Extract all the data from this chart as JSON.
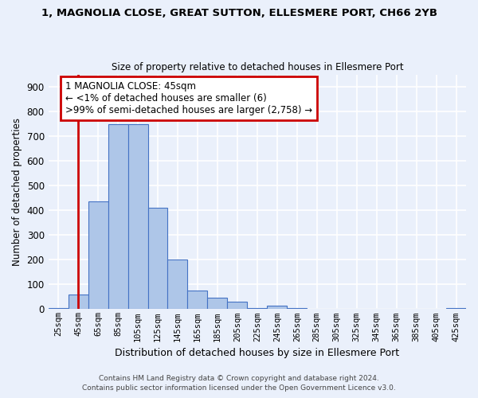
{
  "title": "1, MAGNOLIA CLOSE, GREAT SUTTON, ELLESMERE PORT, CH66 2YB",
  "subtitle": "Size of property relative to detached houses in Ellesmere Port",
  "xlabel": "Distribution of detached houses by size in Ellesmere Port",
  "ylabel": "Number of detached properties",
  "bin_labels": [
    "25sqm",
    "45sqm",
    "65sqm",
    "85sqm",
    "105sqm",
    "125sqm",
    "145sqm",
    "165sqm",
    "185sqm",
    "205sqm",
    "225sqm",
    "245sqm",
    "265sqm",
    "285sqm",
    "305sqm",
    "325sqm",
    "345sqm",
    "365sqm",
    "385sqm",
    "405sqm",
    "425sqm"
  ],
  "bin_edges": [
    15,
    35,
    55,
    75,
    95,
    115,
    135,
    155,
    175,
    195,
    215,
    235,
    255,
    275,
    295,
    315,
    335,
    355,
    375,
    395,
    415,
    435
  ],
  "bar_heights": [
    5,
    60,
    435,
    750,
    750,
    410,
    200,
    75,
    45,
    30,
    5,
    15,
    5,
    0,
    0,
    0,
    0,
    0,
    0,
    0,
    5
  ],
  "bar_color": "#aec6e8",
  "bar_edge_color": "#4472c4",
  "ylim": [
    0,
    950
  ],
  "yticks": [
    0,
    100,
    200,
    300,
    400,
    500,
    600,
    700,
    800,
    900
  ],
  "background_color": "#eaf0fb",
  "grid_color": "#ffffff",
  "annotation_line1": "1 MAGNOLIA CLOSE: 45sqm",
  "annotation_line2": "← <1% of detached houses are smaller (6)",
  "annotation_line3": ">99% of semi-detached houses are larger (2,758) →",
  "annotation_box_color": "#cc0000",
  "property_line_x": 45,
  "footer_line1": "Contains HM Land Registry data © Crown copyright and database right 2024.",
  "footer_line2": "Contains public sector information licensed under the Open Government Licence v3.0."
}
